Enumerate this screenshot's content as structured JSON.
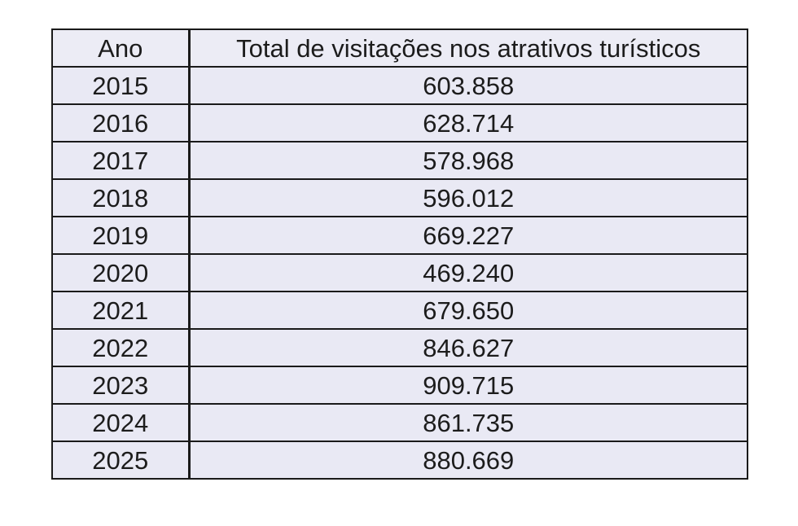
{
  "table": {
    "headers": {
      "year": "Ano",
      "total": "Total de visitações nos atrativos turísticos"
    },
    "rows": [
      {
        "year": "2015",
        "total": "603.858"
      },
      {
        "year": "2016",
        "total": "628.714"
      },
      {
        "year": "2017",
        "total": "578.968"
      },
      {
        "year": "2018",
        "total": "596.012"
      },
      {
        "year": "2019",
        "total": "669.227"
      },
      {
        "year": "2020",
        "total": "469.240"
      },
      {
        "year": "2021",
        "total": "679.650"
      },
      {
        "year": "2022",
        "total": "846.627"
      },
      {
        "year": "2023",
        "total": "909.715"
      },
      {
        "year": "2024",
        "total": "861.735"
      },
      {
        "year": "2025",
        "total": "880.669"
      }
    ]
  },
  "colors": {
    "cell_background": "#e9e9f4",
    "border": "#1a1a1a",
    "text": "#1c1c1c",
    "page_background": "#ffffff"
  }
}
